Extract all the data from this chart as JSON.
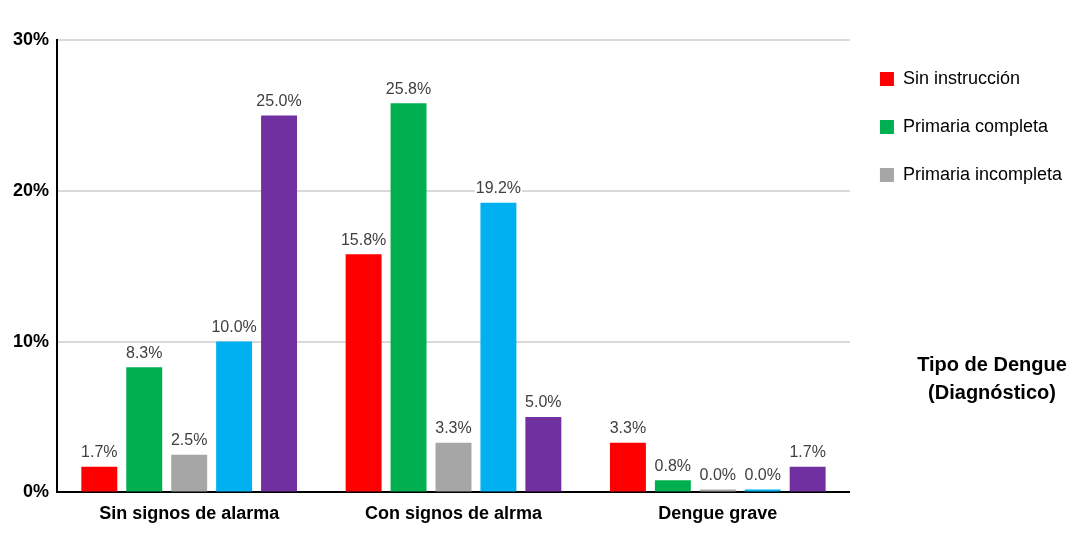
{
  "chart_data": {
    "type": "bar",
    "xlabel": "Tipo de Dengue (Diagnóstico)",
    "categories": [
      "Sin signos de alarma",
      "Con signos de alrma",
      "Dengue grave"
    ],
    "series": [
      {
        "name": "Sin instrucción",
        "color": "#ff0000",
        "values": [
          1.7,
          15.8,
          3.3
        ],
        "value_labels": [
          "1.7%",
          "15.8%",
          "3.3%"
        ]
      },
      {
        "name": "Primaria completa",
        "color": "#00b050",
        "values": [
          8.3,
          25.8,
          0.8
        ],
        "value_labels": [
          "8.3%",
          "25.8%",
          "0.8%"
        ]
      },
      {
        "name": "Primaria incompleta",
        "color": "#a6a6a6",
        "values": [
          2.5,
          3.3,
          0.0
        ],
        "value_labels": [
          "2.5%",
          "3.3%",
          "0.0%"
        ]
      },
      {
        "color": "#00b0f0",
        "values": [
          10.0,
          19.2,
          0.0
        ],
        "value_labels": [
          "10.0%",
          "19.2%",
          "0.0%"
        ]
      },
      {
        "color": "#7030a0",
        "values": [
          25.0,
          5.0,
          1.7
        ],
        "value_labels": [
          "25.0%",
          "5.0%",
          "1.7%"
        ]
      }
    ],
    "ylim": [
      0,
      30
    ],
    "yticks": [
      {
        "value": 0,
        "label": "0%"
      },
      {
        "value": 10,
        "label": "10%"
      },
      {
        "value": 20,
        "label": "20%"
      },
      {
        "value": 30,
        "label": "30%"
      }
    ],
    "grid": "y",
    "legend": "top right"
  }
}
